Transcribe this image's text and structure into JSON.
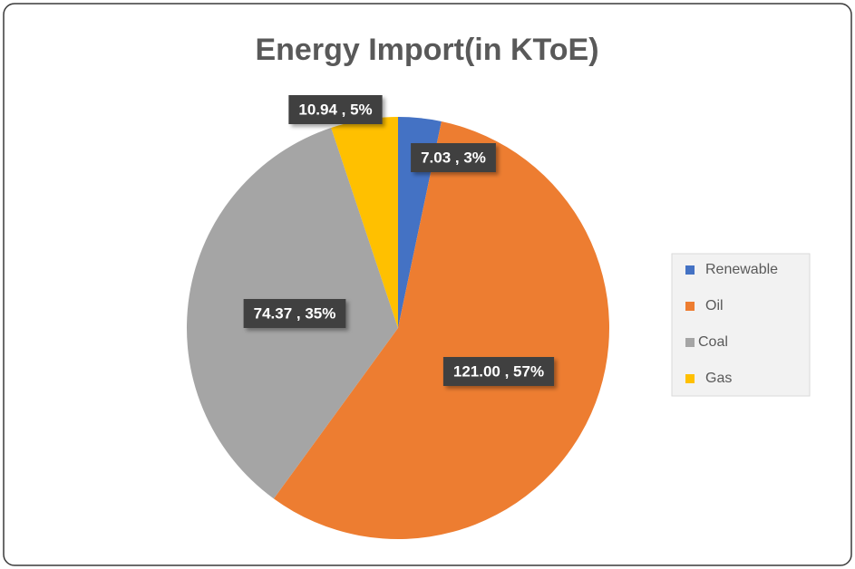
{
  "chart_data": {
    "type": "pie",
    "title": "Energy Import(in KToE)",
    "categories": [
      "Renewable",
      "Oil",
      "Coal",
      "Gas"
    ],
    "values": [
      7.03,
      121.0,
      74.37,
      10.94
    ],
    "value_labels": [
      "7.03 , 3%",
      "121.00 , 57%",
      "74.37 , 35%",
      "10.94 , 5%"
    ],
    "colors": [
      "#4472c4",
      "#ed7d31",
      "#a5a5a5",
      "#ffc000"
    ],
    "legend": "right"
  }
}
